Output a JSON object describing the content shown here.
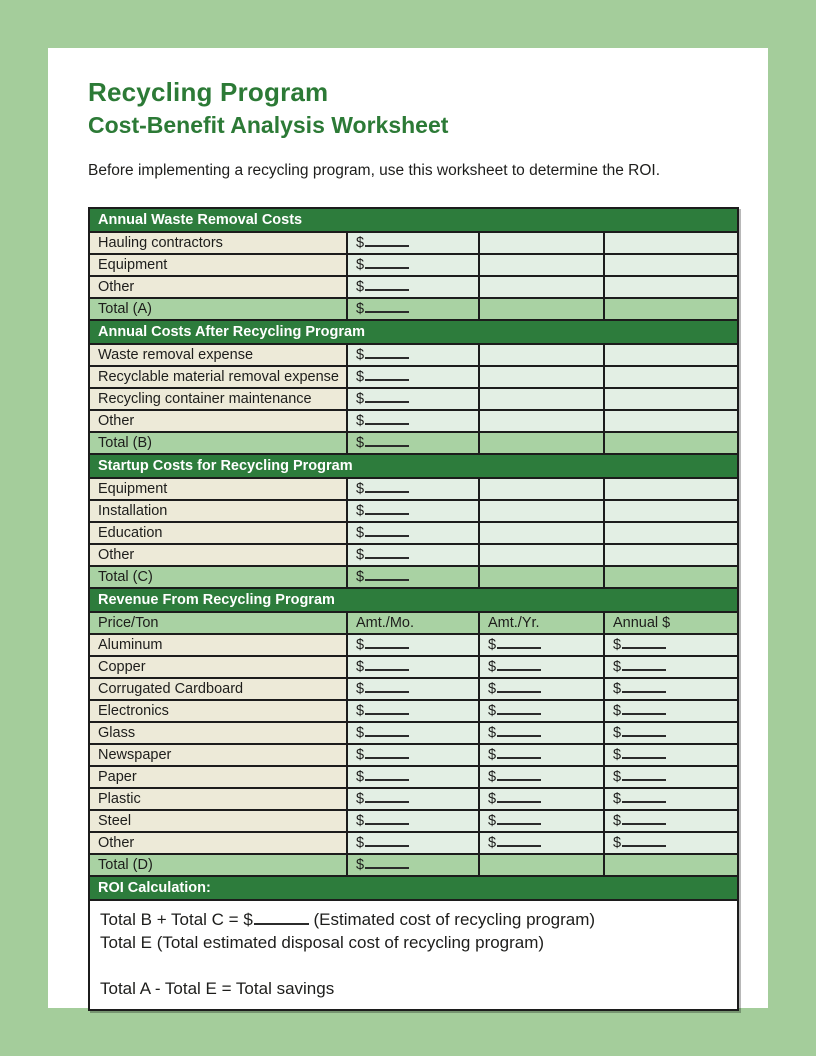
{
  "page": {
    "title": "Recycling Program",
    "subtitle": "Cost-Benefit Analysis Worksheet",
    "intro": "Before implementing a recycling program, use this worksheet to determine the ROI."
  },
  "colors": {
    "surround": "#a4cd9b",
    "header_green": "#2d7c3c",
    "title_green": "#2c7a36",
    "beige": "#edead8",
    "pale_green": "#e3efe4",
    "total_green": "#a9d2a3",
    "border": "#1c1c1c"
  },
  "table": {
    "sections": [
      {
        "header": "Annual Waste Removal Costs",
        "rows": [
          {
            "label": "Hauling contractors",
            "cells": [
              "$____",
              "",
              ""
            ],
            "total": false
          },
          {
            "label": "Equipment",
            "cells": [
              "$____",
              "",
              ""
            ],
            "total": false
          },
          {
            "label": "Other",
            "cells": [
              "$____",
              "",
              ""
            ],
            "total": false
          },
          {
            "label": "Total (A)",
            "cells": [
              "$____",
              "",
              ""
            ],
            "total": true
          }
        ]
      },
      {
        "header": "Annual Costs After Recycling Program",
        "rows": [
          {
            "label": "Waste removal expense",
            "cells": [
              "$____",
              "",
              ""
            ],
            "total": false
          },
          {
            "label": "Recyclable material removal expense",
            "cells": [
              "$____",
              "",
              ""
            ],
            "total": false
          },
          {
            "label": "Recycling container maintenance",
            "cells": [
              "$____",
              "",
              ""
            ],
            "total": false
          },
          {
            "label": "Other",
            "cells": [
              "$____",
              "",
              ""
            ],
            "total": false
          },
          {
            "label": "Total (B)",
            "cells": [
              "$____",
              "",
              ""
            ],
            "total": true
          }
        ]
      },
      {
        "header": "Startup Costs for Recycling Program",
        "rows": [
          {
            "label": "Equipment",
            "cells": [
              "$____",
              "",
              ""
            ],
            "total": false
          },
          {
            "label": "Installation",
            "cells": [
              "$____",
              "",
              ""
            ],
            "total": false
          },
          {
            "label": "Education",
            "cells": [
              "$____",
              "",
              ""
            ],
            "total": false
          },
          {
            "label": "Other",
            "cells": [
              "$____",
              "",
              ""
            ],
            "total": false
          },
          {
            "label": "Total (C)",
            "cells": [
              "$____",
              "",
              ""
            ],
            "total": true
          }
        ]
      },
      {
        "header": "Revenue From Recycling Program",
        "subheader": [
          "Price/Ton",
          "Amt./Mo.",
          "Amt./Yr.",
          "Annual $"
        ],
        "rows": [
          {
            "label": "Aluminum",
            "cells": [
              "$____",
              "$____",
              "$____"
            ],
            "total": false
          },
          {
            "label": "Copper",
            "cells": [
              "$____",
              "$____",
              "$____"
            ],
            "total": false
          },
          {
            "label": "Corrugated Cardboard",
            "cells": [
              "$____",
              "$____",
              "$____"
            ],
            "total": false
          },
          {
            "label": "Electronics",
            "cells": [
              "$____",
              "$____",
              "$____"
            ],
            "total": false
          },
          {
            "label": "Glass",
            "cells": [
              "$____",
              "$____",
              "$____"
            ],
            "total": false
          },
          {
            "label": "Newspaper",
            "cells": [
              "$____",
              "$____",
              "$____"
            ],
            "total": false
          },
          {
            "label": "Paper",
            "cells": [
              "$____",
              "$____",
              "$____"
            ],
            "total": false
          },
          {
            "label": "Plastic",
            "cells": [
              "$____",
              "$____",
              "$____"
            ],
            "total": false
          },
          {
            "label": "Steel",
            "cells": [
              "$____",
              "$____",
              "$____"
            ],
            "total": false
          },
          {
            "label": "Other",
            "cells": [
              "$____",
              "$____",
              "$____"
            ],
            "total": false
          },
          {
            "label": "Total (D)",
            "cells": [
              "$____",
              "",
              ""
            ],
            "total": true
          }
        ]
      }
    ],
    "roi": {
      "header": "ROI Calculation:",
      "lines": [
        "Total B + Total C = $_____  (Estimated cost of recycling program)",
        "Total E (Total estimated disposal cost of recycling program)",
        "",
        "Total A - Total E = Total savings"
      ]
    }
  }
}
